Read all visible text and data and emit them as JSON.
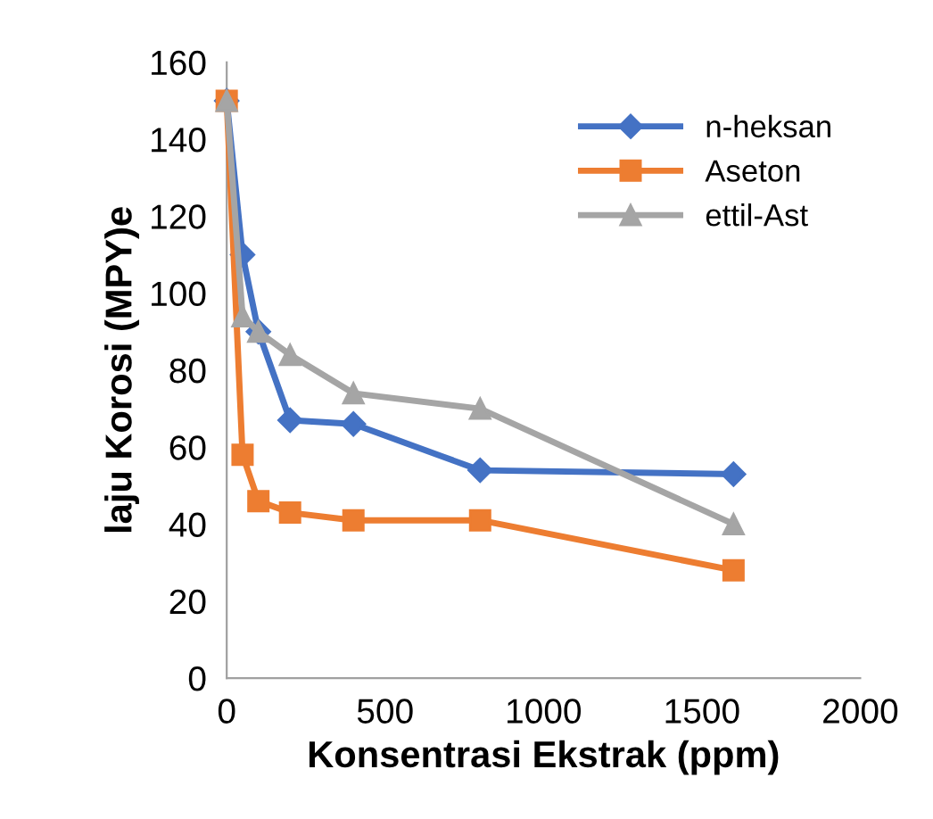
{
  "chart_data": {
    "type": "line",
    "xlabel": "Konsentrasi Ekstrak (ppm)",
    "ylabel": "laju Korosi (MPY)e",
    "x": [
      0,
      50,
      100,
      200,
      400,
      800,
      1600
    ],
    "series": [
      {
        "name": "n-heksan",
        "color": "#4472c4",
        "marker": "diamond",
        "values": [
          150,
          110,
          90,
          67,
          66,
          54,
          53
        ]
      },
      {
        "name": "Aseton",
        "color": "#ed7d31",
        "marker": "square",
        "values": [
          150,
          58,
          46,
          43,
          41,
          41,
          28
        ]
      },
      {
        "name": "ettil-Ast",
        "color": "#a5a5a5",
        "marker": "triangle",
        "values": [
          150,
          94,
          90,
          84,
          74,
          70,
          40
        ]
      }
    ],
    "xlim": [
      0,
      2000
    ],
    "xticks": [
      0,
      500,
      1000,
      1500,
      2000
    ],
    "ylim": [
      0,
      160
    ],
    "yticks": [
      0,
      20,
      40,
      60,
      80,
      100,
      120,
      140,
      160
    ],
    "grid": false,
    "legend": "top right"
  }
}
